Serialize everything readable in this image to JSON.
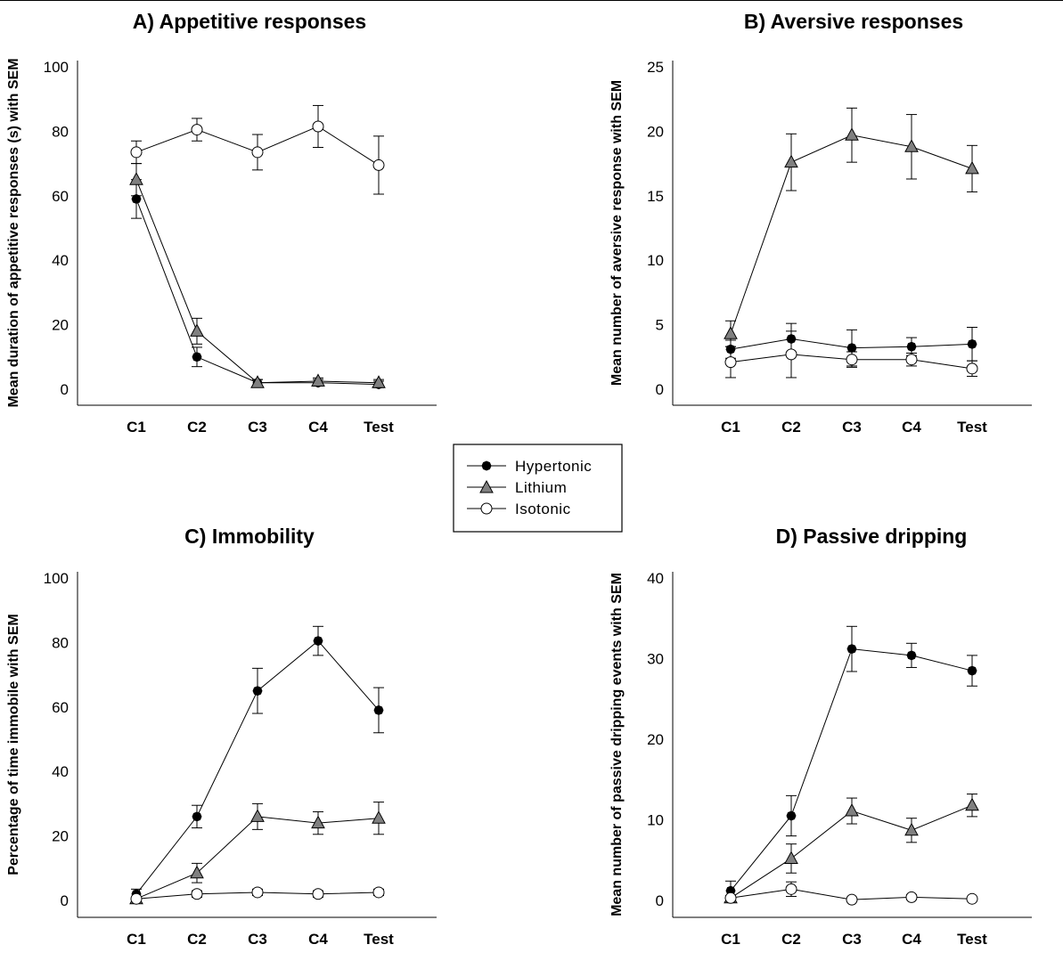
{
  "legend": [
    {
      "name": "Hypertonic",
      "marker": "filled-circle"
    },
    {
      "name": "Lithium",
      "marker": "gray-triangle"
    },
    {
      "name": "Isotonic",
      "marker": "open-circle"
    }
  ],
  "chart_data": [
    {
      "id": "A",
      "type": "line",
      "title": "A)  Appetitive responses",
      "ylabel": "Mean duration of appetitive responses (s) with SEM",
      "xlabel": "",
      "categories": [
        "C1",
        "C2",
        "C3",
        "C4",
        "Test"
      ],
      "ylim": [
        0,
        100
      ],
      "yticks": [
        0,
        20,
        40,
        60,
        80,
        100
      ],
      "series": [
        {
          "name": "Hypertonic",
          "values": [
            59,
            10,
            2,
            2,
            1.5
          ],
          "sem": [
            6,
            3,
            1,
            1,
            1
          ]
        },
        {
          "name": "Lithium",
          "values": [
            65,
            18,
            2,
            2.5,
            2
          ],
          "sem": [
            5,
            4,
            1,
            1,
            1
          ]
        },
        {
          "name": "Isotonic",
          "values": [
            73.5,
            80.5,
            73.5,
            81.5,
            69.5
          ],
          "sem": [
            3.5,
            3.5,
            5.5,
            6.5,
            9
          ]
        }
      ]
    },
    {
      "id": "B",
      "type": "line",
      "title": "B)  Aversive responses",
      "ylabel": "Mean number of aversive response with SEM",
      "xlabel": "",
      "categories": [
        "C1",
        "C2",
        "C3",
        "C4",
        "Test"
      ],
      "ylim": [
        0,
        25
      ],
      "yticks": [
        0,
        5,
        10,
        15,
        20,
        25
      ],
      "series": [
        {
          "name": "Hypertonic",
          "values": [
            3.1,
            3.9,
            3.2,
            3.3,
            3.5
          ],
          "sem": [
            0.7,
            1.2,
            1.4,
            0.7,
            1.3
          ]
        },
        {
          "name": "Lithium",
          "values": [
            4.3,
            17.6,
            19.7,
            18.8,
            17.1
          ],
          "sem": [
            1.0,
            2.2,
            2.1,
            2.5,
            1.8
          ]
        },
        {
          "name": "Isotonic",
          "values": [
            2.1,
            2.7,
            2.3,
            2.3,
            1.6
          ],
          "sem": [
            1.2,
            1.8,
            0.6,
            0.5,
            0.6
          ]
        }
      ]
    },
    {
      "id": "C",
      "type": "line",
      "title": "C)  Immobility",
      "ylabel": "Percentage of time immobile with SEM",
      "xlabel": "",
      "categories": [
        "C1",
        "C2",
        "C3",
        "C4",
        "Test"
      ],
      "ylim": [
        0,
        100
      ],
      "yticks": [
        0,
        20,
        40,
        60,
        80,
        100
      ],
      "series": [
        {
          "name": "Hypertonic",
          "values": [
            2,
            26,
            65,
            80.5,
            59
          ],
          "sem": [
            1.5,
            3.5,
            7,
            4.5,
            7
          ]
        },
        {
          "name": "Lithium",
          "values": [
            0.5,
            8.5,
            26,
            24,
            25.5
          ],
          "sem": [
            0.5,
            3,
            4,
            3.5,
            5
          ]
        },
        {
          "name": "Isotonic",
          "values": [
            0.5,
            2,
            2.5,
            2,
            2.5
          ],
          "sem": [
            0.5,
            1,
            1,
            1,
            1
          ]
        }
      ]
    },
    {
      "id": "D",
      "type": "line",
      "title": "D) Passive dripping",
      "ylabel": "Mean number of passive dripping events with SEM",
      "xlabel": "",
      "categories": [
        "C1",
        "C2",
        "C3",
        "C4",
        "Test"
      ],
      "ylim": [
        0,
        40
      ],
      "yticks": [
        0,
        10,
        20,
        30,
        40
      ],
      "series": [
        {
          "name": "Hypertonic",
          "values": [
            1.2,
            10.5,
            31.2,
            30.4,
            28.5
          ],
          "sem": [
            1.2,
            2.5,
            2.8,
            1.5,
            1.9
          ]
        },
        {
          "name": "Lithium",
          "values": [
            0.3,
            5.2,
            11.1,
            8.7,
            11.8
          ],
          "sem": [
            0.3,
            1.8,
            1.6,
            1.5,
            1.4
          ]
        },
        {
          "name": "Isotonic",
          "values": [
            0.3,
            1.4,
            0.1,
            0.4,
            0.2
          ],
          "sem": [
            0.3,
            0.9,
            0.1,
            0.3,
            0.2
          ]
        }
      ]
    }
  ]
}
